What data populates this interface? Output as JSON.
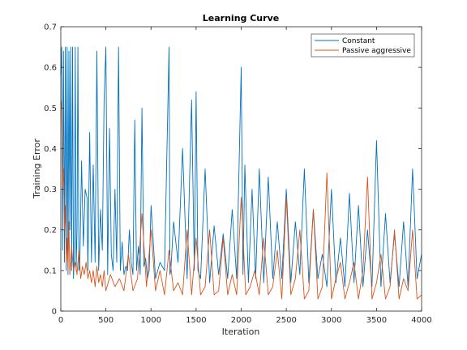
{
  "chart_data": {
    "type": "line",
    "title": "Learning Curve",
    "xlabel": "Iteration",
    "ylabel": "Training Error",
    "xlim": [
      0,
      4000
    ],
    "ylim": [
      0,
      0.7
    ],
    "xticks": [
      0,
      500,
      1000,
      1500,
      2000,
      2500,
      3000,
      3500,
      4000
    ],
    "xtick_labels": [
      "0",
      "500",
      "1000",
      "1500",
      "2000",
      "2500",
      "3000",
      "3500",
      "4000"
    ],
    "yticks": [
      0,
      0.1,
      0.2,
      0.3,
      0.4,
      0.5,
      0.6,
      0.7
    ],
    "ytick_labels": [
      "0",
      "0.1",
      "0.2",
      "0.3",
      "0.4",
      "0.5",
      "0.6",
      "0.7"
    ],
    "grid": false,
    "legend_position": "top-right",
    "series": [
      {
        "name": "Constant",
        "color": "#0072BD",
        "x": [
          0,
          10,
          20,
          30,
          40,
          50,
          60,
          70,
          80,
          90,
          100,
          110,
          120,
          130,
          140,
          150,
          160,
          170,
          180,
          190,
          200,
          210,
          230,
          250,
          270,
          290,
          300,
          320,
          340,
          360,
          380,
          400,
          420,
          440,
          460,
          480,
          500,
          520,
          540,
          560,
          580,
          600,
          620,
          640,
          660,
          680,
          700,
          720,
          740,
          760,
          780,
          800,
          820,
          840,
          860,
          880,
          900,
          920,
          940,
          960,
          980,
          1000,
          1050,
          1100,
          1150,
          1200,
          1210,
          1220,
          1250,
          1300,
          1350,
          1400,
          1450,
          1480,
          1500,
          1520,
          1550,
          1600,
          1650,
          1700,
          1750,
          1800,
          1850,
          1900,
          1950,
          2000,
          2020,
          2040,
          2080,
          2120,
          2160,
          2200,
          2250,
          2300,
          2350,
          2400,
          2450,
          2500,
          2550,
          2600,
          2650,
          2700,
          2750,
          2800,
          2850,
          2900,
          2950,
          3000,
          3050,
          3100,
          3150,
          3200,
          3250,
          3300,
          3350,
          3400,
          3450,
          3500,
          3550,
          3600,
          3650,
          3700,
          3750,
          3800,
          3850,
          3900,
          3950,
          4000
        ],
        "values": [
          0.58,
          0.65,
          0.15,
          0.64,
          0.12,
          0.65,
          0.1,
          0.65,
          0.09,
          0.64,
          0.2,
          0.65,
          0.1,
          0.65,
          0.08,
          0.13,
          0.65,
          0.1,
          0.2,
          0.65,
          0.1,
          0.11,
          0.37,
          0.16,
          0.3,
          0.28,
          0.1,
          0.44,
          0.12,
          0.36,
          0.12,
          0.64,
          0.1,
          0.25,
          0.15,
          0.52,
          0.65,
          0.09,
          0.45,
          0.14,
          0.1,
          0.3,
          0.12,
          0.65,
          0.1,
          0.17,
          0.09,
          0.11,
          0.1,
          0.2,
          0.12,
          0.09,
          0.47,
          0.1,
          0.16,
          0.09,
          0.5,
          0.11,
          0.13,
          0.08,
          0.1,
          0.26,
          0.08,
          0.12,
          0.1,
          0.65,
          0.09,
          0.1,
          0.22,
          0.12,
          0.4,
          0.08,
          0.52,
          0.1,
          0.54,
          0.1,
          0.08,
          0.35,
          0.07,
          0.21,
          0.09,
          0.19,
          0.08,
          0.25,
          0.08,
          0.6,
          0.09,
          0.36,
          0.07,
          0.3,
          0.08,
          0.35,
          0.07,
          0.33,
          0.08,
          0.22,
          0.08,
          0.3,
          0.07,
          0.22,
          0.09,
          0.35,
          0.07,
          0.25,
          0.08,
          0.14,
          0.06,
          0.3,
          0.07,
          0.18,
          0.06,
          0.29,
          0.07,
          0.26,
          0.06,
          0.2,
          0.06,
          0.42,
          0.06,
          0.24,
          0.07,
          0.19,
          0.06,
          0.22,
          0.06,
          0.35,
          0.08,
          0.14
        ]
      },
      {
        "name": "Passive aggressive",
        "color": "#D95319",
        "x": [
          0,
          10,
          20,
          30,
          40,
          50,
          60,
          70,
          80,
          90,
          100,
          120,
          140,
          160,
          180,
          200,
          220,
          240,
          260,
          280,
          300,
          320,
          340,
          360,
          380,
          400,
          420,
          440,
          460,
          480,
          500,
          550,
          600,
          650,
          700,
          750,
          800,
          850,
          900,
          950,
          1000,
          1050,
          1100,
          1150,
          1200,
          1250,
          1300,
          1350,
          1400,
          1450,
          1500,
          1550,
          1600,
          1650,
          1700,
          1750,
          1800,
          1850,
          1900,
          1950,
          2000,
          2050,
          2100,
          2150,
          2200,
          2250,
          2300,
          2350,
          2400,
          2450,
          2500,
          2550,
          2600,
          2650,
          2700,
          2750,
          2800,
          2850,
          2900,
          2950,
          3000,
          3050,
          3100,
          3150,
          3200,
          3250,
          3300,
          3350,
          3400,
          3450,
          3500,
          3550,
          3600,
          3650,
          3700,
          3750,
          3800,
          3850,
          3900,
          3950,
          4000
        ],
        "values": [
          0.52,
          0.5,
          0.3,
          0.35,
          0.2,
          0.26,
          0.12,
          0.18,
          0.1,
          0.22,
          0.09,
          0.16,
          0.1,
          0.12,
          0.09,
          0.15,
          0.08,
          0.11,
          0.09,
          0.12,
          0.08,
          0.1,
          0.07,
          0.1,
          0.06,
          0.11,
          0.07,
          0.09,
          0.06,
          0.1,
          0.05,
          0.09,
          0.06,
          0.08,
          0.05,
          0.14,
          0.05,
          0.08,
          0.24,
          0.06,
          0.2,
          0.05,
          0.1,
          0.04,
          0.15,
          0.05,
          0.07,
          0.04,
          0.2,
          0.04,
          0.18,
          0.04,
          0.06,
          0.2,
          0.04,
          0.05,
          0.18,
          0.04,
          0.09,
          0.04,
          0.28,
          0.04,
          0.06,
          0.1,
          0.04,
          0.18,
          0.04,
          0.06,
          0.15,
          0.03,
          0.28,
          0.04,
          0.08,
          0.2,
          0.03,
          0.05,
          0.25,
          0.03,
          0.06,
          0.34,
          0.03,
          0.08,
          0.12,
          0.03,
          0.07,
          0.12,
          0.03,
          0.1,
          0.33,
          0.03,
          0.07,
          0.14,
          0.03,
          0.06,
          0.2,
          0.03,
          0.08,
          0.05,
          0.2,
          0.03,
          0.04
        ]
      }
    ]
  }
}
